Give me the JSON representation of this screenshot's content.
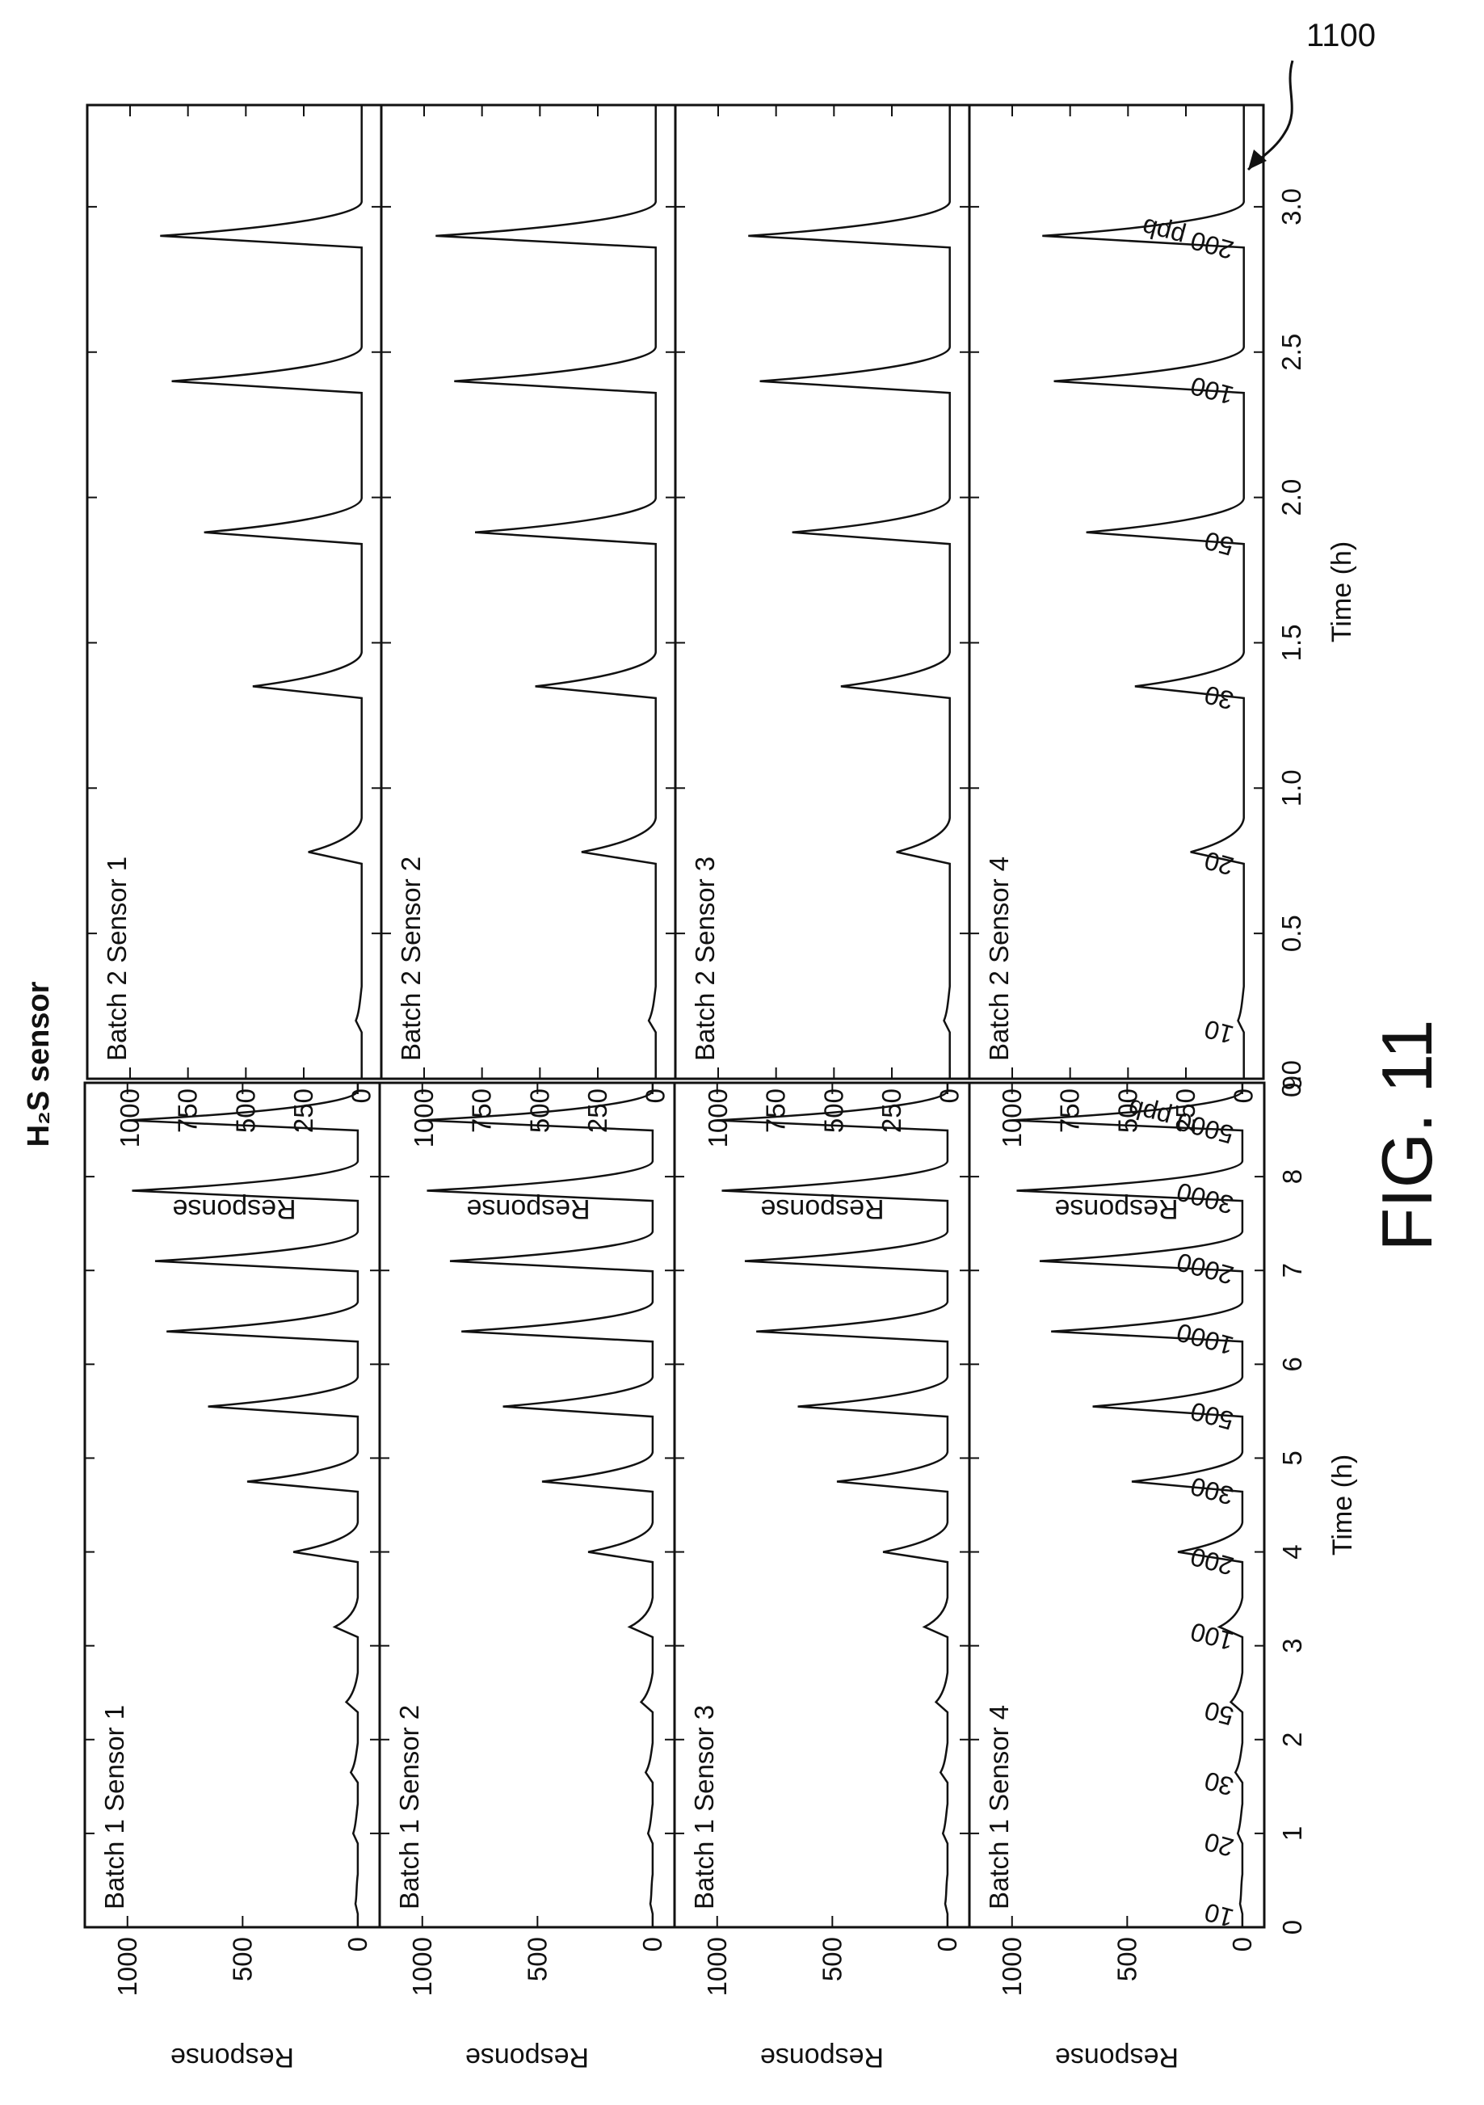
{
  "figure": {
    "title": "H₂S sensor",
    "caption": "FIG. 11",
    "reference": "1100"
  },
  "chart_data": [
    {
      "type": "line",
      "group": "Batch 1",
      "xlabel": "Time (h)",
      "ylabel": "Response",
      "xlim": [
        0,
        9
      ],
      "ylim": [
        -60,
        1150
      ],
      "xticks": [
        "0",
        "1",
        "2",
        "3",
        "4",
        "5",
        "6",
        "7",
        "8",
        "9"
      ],
      "yticks": [
        "0",
        "500",
        "1000"
      ],
      "panels": [
        {
          "label": "Batch 1 Sensor 1",
          "peak_times": [
            0.25,
            1.0,
            1.65,
            2.4,
            3.2,
            4.0,
            4.75,
            5.55,
            6.35,
            7.1,
            7.85,
            8.6
          ],
          "peak_values": [
            10,
            20,
            30,
            50,
            100,
            280,
            480,
            650,
            830,
            880,
            980,
            1000
          ]
        },
        {
          "label": "Batch 1 Sensor 2",
          "peak_times": [
            0.25,
            1.0,
            1.65,
            2.4,
            3.2,
            4.0,
            4.75,
            5.55,
            6.35,
            7.1,
            7.85,
            8.6
          ],
          "peak_values": [
            10,
            20,
            30,
            50,
            100,
            280,
            480,
            650,
            830,
            880,
            980,
            1000
          ]
        },
        {
          "label": "Batch 1 Sensor 3",
          "peak_times": [
            0.25,
            1.0,
            1.65,
            2.4,
            3.2,
            4.0,
            4.75,
            5.55,
            6.35,
            7.1,
            7.85,
            8.6
          ],
          "peak_values": [
            10,
            20,
            30,
            50,
            100,
            280,
            480,
            650,
            830,
            880,
            980,
            1000
          ]
        },
        {
          "label": "Batch 1 Sensor 4",
          "peak_times": [
            0.25,
            1.0,
            1.65,
            2.4,
            3.2,
            4.0,
            4.75,
            5.55,
            6.35,
            7.1,
            7.85,
            8.6
          ],
          "peak_values": [
            10,
            20,
            30,
            50,
            100,
            280,
            480,
            650,
            830,
            880,
            980,
            1000
          ]
        }
      ],
      "concentration_labels": [
        "10",
        "20",
        "30",
        "50",
        "100",
        "200",
        "300",
        "500",
        "1000",
        "2000",
        "3000",
        "5000 ppb"
      ]
    },
    {
      "type": "line",
      "group": "Batch 2",
      "xlabel": "Time (h)",
      "ylabel": "Response",
      "xlim": [
        0,
        3.35
      ],
      "ylim": [
        -50,
        1150
      ],
      "xticks": [
        "0.0",
        "0.5",
        "1.0",
        "1.5",
        "2.0",
        "2.5",
        "3.0"
      ],
      "yticks": [
        "0",
        "250",
        "500",
        "750",
        "1000"
      ],
      "panels": [
        {
          "label": "Batch 2 Sensor 1",
          "peak_times": [
            0.2,
            0.78,
            1.35,
            1.88,
            2.4,
            2.9
          ],
          "peak_values": [
            25,
            230,
            470,
            680,
            820,
            870
          ]
        },
        {
          "label": "Batch 2 Sensor 2",
          "peak_times": [
            0.2,
            0.78,
            1.35,
            1.88,
            2.4,
            2.9
          ],
          "peak_values": [
            30,
            320,
            520,
            780,
            870,
            950
          ]
        },
        {
          "label": "Batch 2 Sensor 3",
          "peak_times": [
            0.2,
            0.78,
            1.35,
            1.88,
            2.4,
            2.9
          ],
          "peak_values": [
            25,
            230,
            470,
            680,
            820,
            870
          ]
        },
        {
          "label": "Batch 2 Sensor 4",
          "peak_times": [
            0.2,
            0.78,
            1.35,
            1.88,
            2.4,
            2.9
          ],
          "peak_values": [
            25,
            230,
            470,
            680,
            820,
            870
          ]
        }
      ],
      "concentration_labels": [
        "10",
        "20",
        "30",
        "50",
        "100",
        "200 ppb"
      ]
    }
  ]
}
